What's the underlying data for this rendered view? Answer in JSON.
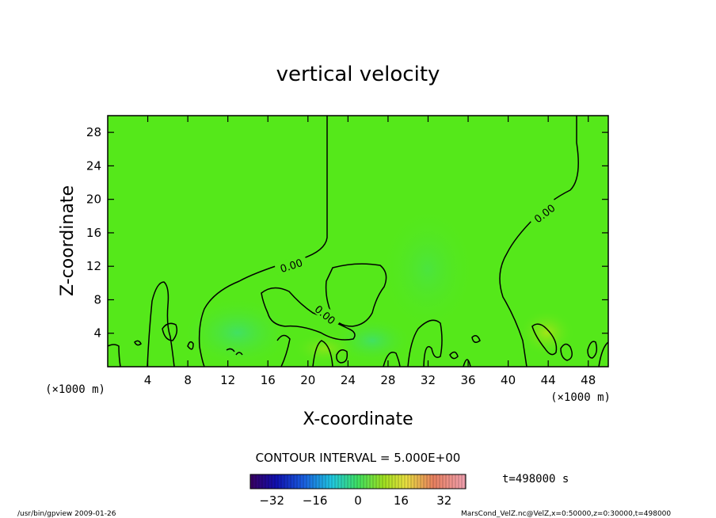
{
  "chart_data": {
    "type": "heatmap",
    "title": "vertical velocity",
    "xlabel": "X-coordinate",
    "ylabel": "Z-coordinate",
    "x_unit": "(×1000 m)",
    "z_unit": "(×1000 m)",
    "xlim": [
      0,
      50
    ],
    "ylim": [
      0,
      30
    ],
    "x_ticks": [
      4,
      8,
      12,
      16,
      20,
      24,
      28,
      32,
      36,
      40,
      44,
      48
    ],
    "y_ticks": [
      4,
      8,
      12,
      16,
      20,
      24,
      28
    ],
    "contour_interval_text": "CONTOUR INTERVAL = 5.000E+00",
    "contour_labels": [
      "0.00",
      "0.00",
      "0.00"
    ],
    "colorbar": {
      "ticks": [
        -32,
        -16,
        0,
        16,
        32
      ],
      "range": [
        -40,
        40
      ]
    },
    "time_text": "t=498000 s",
    "footer_left": "/usr/bin/gpview   2009-01-26",
    "footer_right": "MarsCond_VelZ.nc@VelZ,x=0:50000,z=0:30000,t=498000",
    "colors": {
      "background_field": "#55e81a",
      "contour": "#000000"
    }
  }
}
